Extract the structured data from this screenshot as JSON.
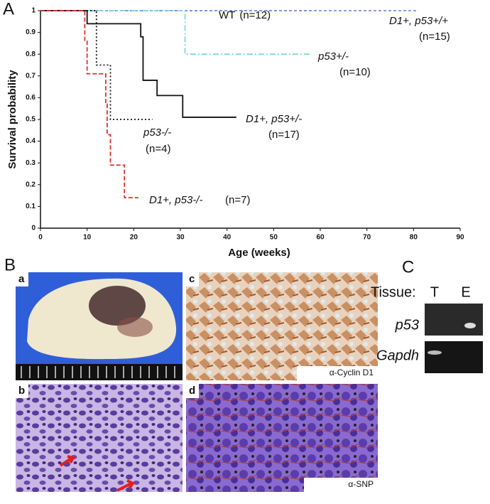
{
  "chart_data": {
    "type": "step",
    "panel_label": "A",
    "xlabel": "Age (weeks)",
    "ylabel": "Survival probability",
    "xlim": [
      0,
      90
    ],
    "xticks": [
      0,
      10,
      20,
      30,
      40,
      50,
      60,
      70,
      80,
      90
    ],
    "ylim": [
      0,
      1
    ],
    "yticks": [
      {
        "value": 0,
        "label": "0"
      },
      0.1,
      0.2,
      0.3,
      0.4,
      0.5,
      0.6,
      0.7,
      0.8,
      0.9,
      {
        "value": 1,
        "label": "1"
      }
    ],
    "series": [
      {
        "name": "WT",
        "n": "(n=12)",
        "color": "#7f8fd6",
        "dash": "4 3",
        "x": [
          0,
          58
        ],
        "values": [
          1,
          1
        ]
      },
      {
        "name": "D1+, p53+/+",
        "n": "(n=15)",
        "color": "#7f8fd6",
        "dash": "4 3",
        "x": [
          0,
          81
        ],
        "values": [
          1,
          1
        ]
      },
      {
        "name": "p53+/-",
        "n": "(n=10)",
        "color": "#7fd8d8",
        "dash": "8 3 2 3",
        "x": [
          0,
          31,
          58
        ],
        "values": [
          1,
          0.8,
          0.8
        ]
      },
      {
        "name": "D1+, p53+/-",
        "n": "(n=17)",
        "color": "#111111",
        "dash": "",
        "x": [
          0,
          10,
          21.5,
          22,
          25,
          30.5,
          42
        ],
        "values": [
          1,
          0.94,
          0.88,
          0.68,
          0.61,
          0.51,
          0.51
        ]
      },
      {
        "name": "p53-/-",
        "n": "(n=4)",
        "color": "#111111",
        "dash": "2 3",
        "x": [
          0,
          12,
          15,
          24
        ],
        "values": [
          1,
          0.75,
          0.5,
          0.5
        ]
      },
      {
        "name": "D1+, p53-/-",
        "n": "(n=7)",
        "color": "#e03030",
        "dash": "6 3",
        "x": [
          0,
          9.5,
          10,
          14,
          14.3,
          15,
          18,
          21
        ],
        "values": [
          1,
          0.86,
          0.71,
          0.57,
          0.43,
          0.29,
          0.14,
          0.14
        ]
      }
    ]
  },
  "panel_b": {
    "label": "B",
    "images": [
      {
        "label": "a"
      },
      {
        "label": "b"
      },
      {
        "label": "c",
        "caption": "α-Cyclin D1"
      },
      {
        "label": "d",
        "caption": "α-SNP"
      }
    ]
  },
  "panel_c": {
    "label": "C",
    "tissue": "Tissue:",
    "lanes": [
      "T",
      "E"
    ],
    "genes": [
      "p53",
      "Gapdh"
    ]
  }
}
